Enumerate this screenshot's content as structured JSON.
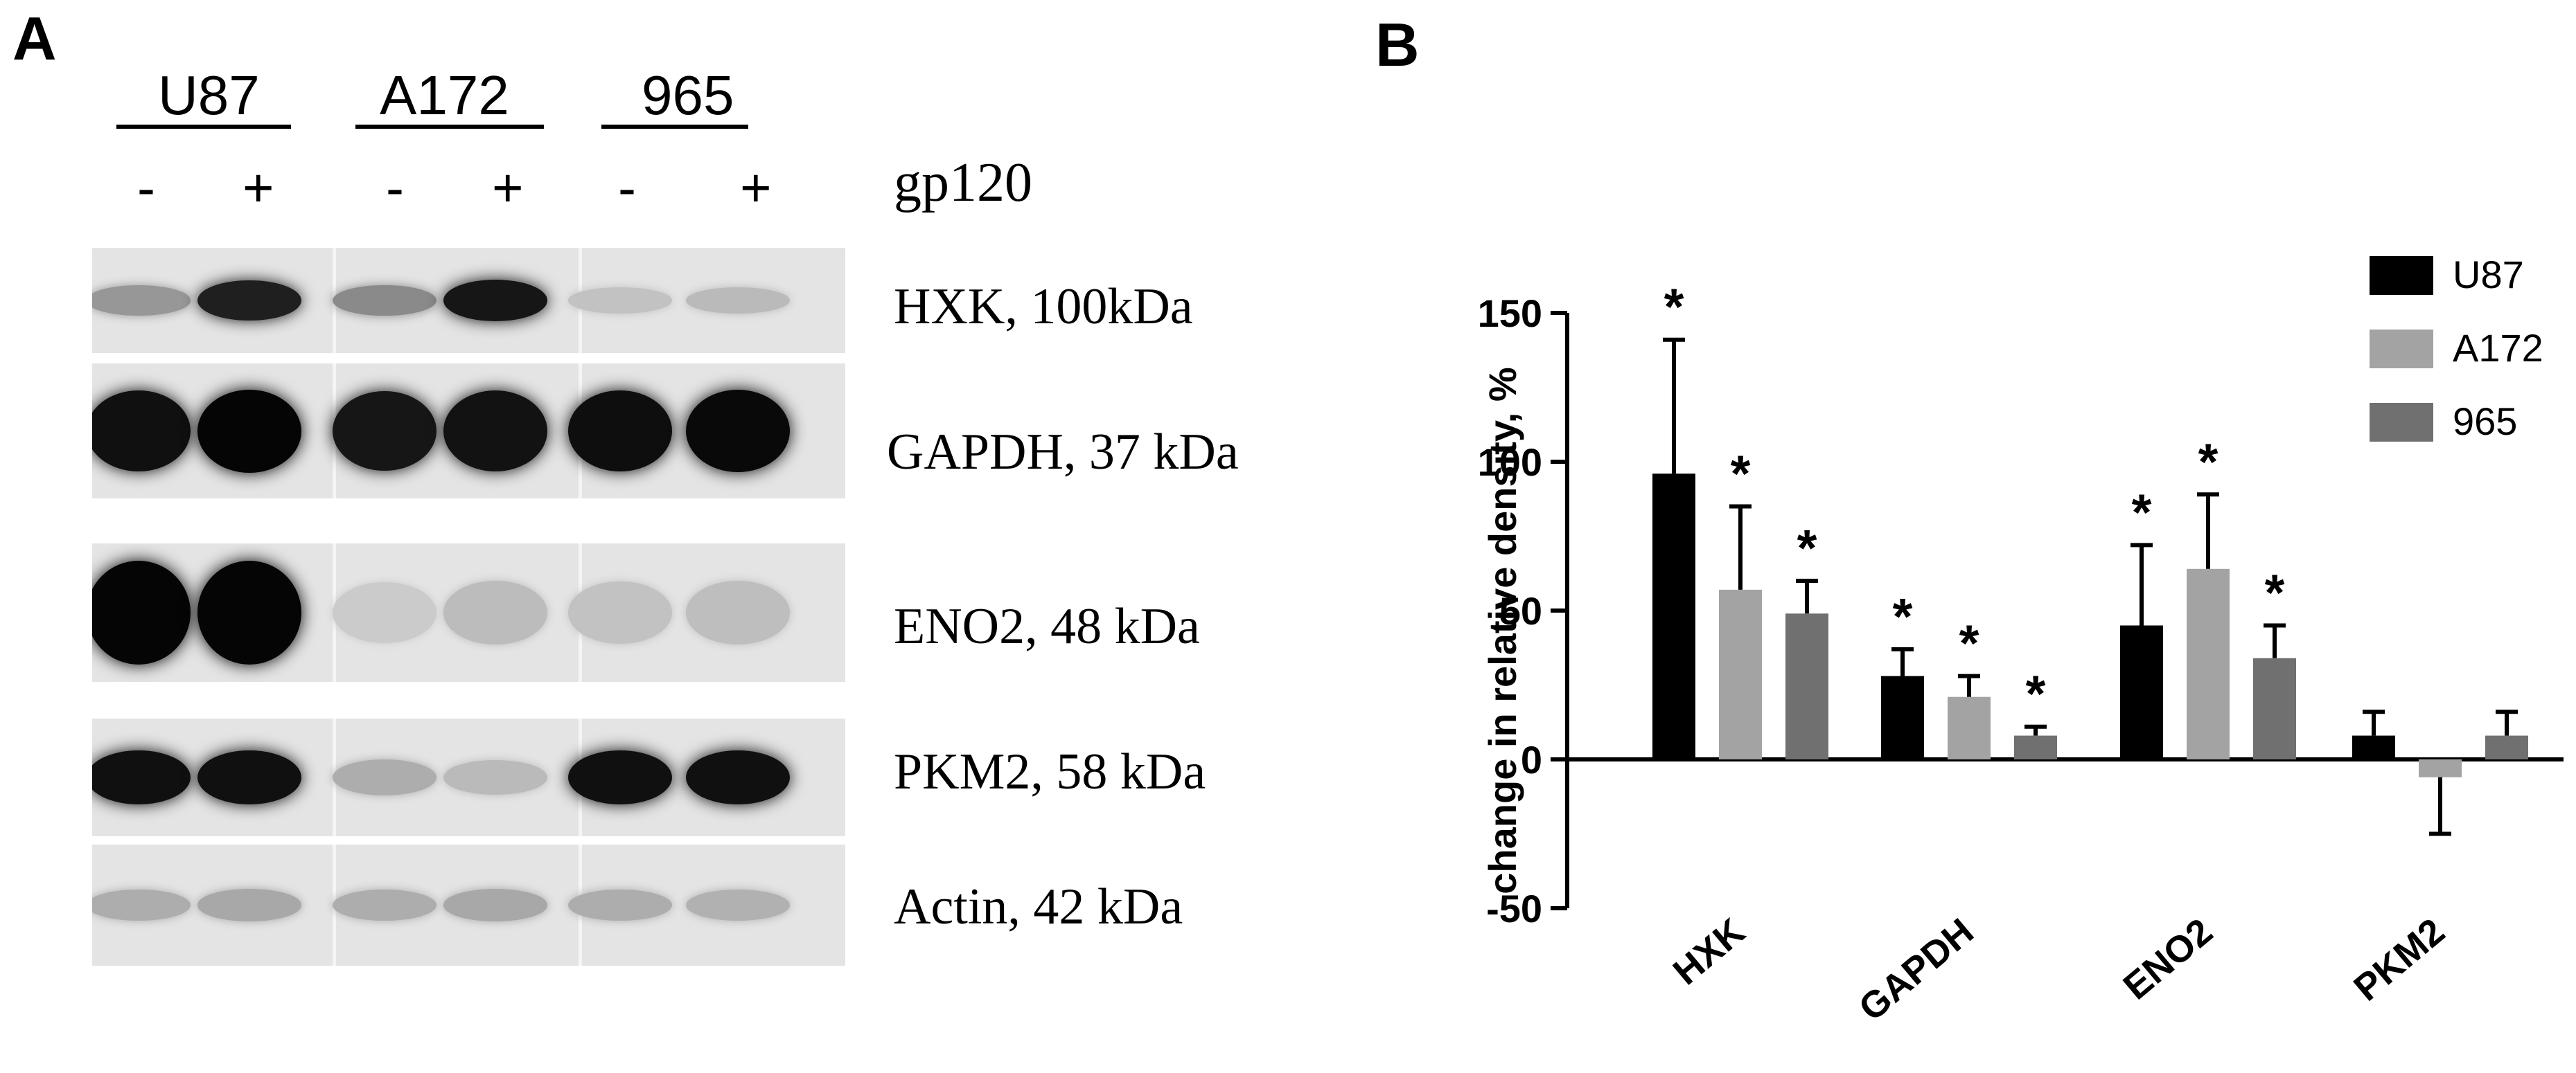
{
  "panel_a": {
    "letter": "A",
    "cell_lines": [
      "U87",
      "A172",
      "965"
    ],
    "treatment": {
      "label": "gp120",
      "signs": [
        "-",
        "+",
        "-",
        "+",
        "-",
        "+"
      ]
    },
    "blots": [
      {
        "label": "HXK, 100kDa",
        "intensities": [
          0.32,
          0.88,
          0.38,
          0.92,
          0.12,
          0.16
        ]
      },
      {
        "label": "GAPDH, 37 kDa",
        "intensities": [
          0.95,
          1.0,
          0.92,
          0.94,
          0.96,
          0.98
        ]
      },
      {
        "label": "ENO2, 48 kDa",
        "intensities": [
          1.0,
          1.0,
          0.08,
          0.15,
          0.12,
          0.14
        ]
      },
      {
        "label": "PKM2, 58 kDa",
        "intensities": [
          0.95,
          0.95,
          0.22,
          0.16,
          0.95,
          0.95
        ]
      },
      {
        "label": "Actin, 42 kDa",
        "intensities": [
          0.22,
          0.24,
          0.22,
          0.24,
          0.22,
          0.2
        ]
      }
    ]
  },
  "panel_b": {
    "letter": "B"
  },
  "chart_data": {
    "type": "bar",
    "categories": [
      "HXK",
      "GAPDH",
      "ENO2",
      "PKM2"
    ],
    "series": [
      {
        "name": "U87",
        "color": "#000000",
        "values": [
          96,
          28,
          45,
          8
        ],
        "errors": [
          45,
          9,
          27,
          8
        ],
        "significant": [
          true,
          true,
          true,
          false
        ]
      },
      {
        "name": "A172",
        "color": "#a3a3a3",
        "values": [
          57,
          21,
          64,
          -6
        ],
        "errors": [
          28,
          7,
          25,
          19
        ],
        "significant": [
          true,
          true,
          true,
          false
        ]
      },
      {
        "name": "965",
        "color": "#707070",
        "values": [
          49,
          8,
          34,
          8
        ],
        "errors": [
          11,
          3,
          11,
          8
        ],
        "significant": [
          true,
          true,
          true,
          false
        ]
      }
    ],
    "ylabel": "change in relative density, %",
    "xlabel": "",
    "ylim": [
      -50,
      150
    ],
    "yticks": [
      "150",
      "100",
      "50",
      "0",
      "-50"
    ],
    "significance_marker": "*",
    "legend_position": "top-right",
    "grid": false
  }
}
